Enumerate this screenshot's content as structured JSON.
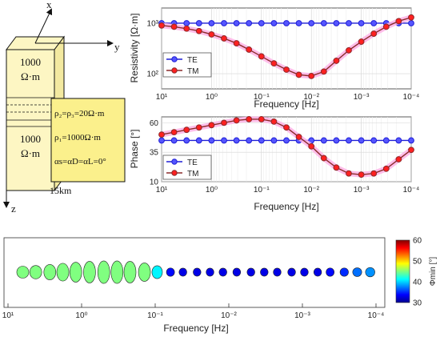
{
  "model": {
    "axis_x": "x",
    "axis_y": "y",
    "axis_z": "z",
    "upper_layer_line1": "1000",
    "upper_layer_line2": "Ω·m",
    "lower_layer_line1": "1000",
    "lower_layer_line2": "Ω·m",
    "depth_label": "15km",
    "legend_line1": "ρ₂=ρ₃=20Ω·m",
    "legend_line2": "ρ₁=1000Ω·m",
    "legend_line3": "αs=αD=αL=0°",
    "colors": {
      "block_fill": "#fdf6c3",
      "block_side": "#f3e9a0",
      "legend_fill": "#fbf08c"
    }
  },
  "chart_data": [
    {
      "type": "line",
      "panel": "resistivity",
      "xlabel": "Frequency [Hz]",
      "ylabel": "Resistivity [Ω·m]",
      "x_scale": "log",
      "x_reversed": true,
      "xlim": [
        10,
        0.0001
      ],
      "y_scale": "log",
      "ylim": [
        50,
        2000
      ],
      "xtick_labels": [
        "10¹",
        "10⁰",
        "10⁻¹",
        "10⁻²",
        "10⁻³",
        "10⁻⁴"
      ],
      "ytick_labels": [
        "10²",
        "10³"
      ],
      "grid": true,
      "legend": "top-left",
      "x": [
        10,
        5.62,
        3.16,
        1.78,
        1,
        0.562,
        0.316,
        0.178,
        0.1,
        0.0562,
        0.0316,
        0.0178,
        0.01,
        0.00562,
        0.00316,
        0.00178,
        0.001,
        0.000562,
        0.000316,
        0.000178,
        0.0001
      ],
      "series": [
        {
          "name": "TE",
          "color": "#1f1fd6",
          "values": [
            1000,
            1000,
            1000,
            1000,
            1000,
            1000,
            1000,
            1000,
            1000,
            1000,
            1000,
            1000,
            1000,
            1000,
            1000,
            1000,
            1000,
            1000,
            1000,
            1000,
            1000
          ]
        },
        {
          "name": "TM",
          "color": "#d01818",
          "values": [
            900,
            850,
            780,
            700,
            600,
            500,
            400,
            300,
            220,
            160,
            120,
            95,
            90,
            110,
            180,
            290,
            430,
            620,
            850,
            1100,
            1300
          ]
        }
      ]
    },
    {
      "type": "line",
      "panel": "phase",
      "xlabel": "Frequency [Hz]",
      "ylabel": "Phase [°]",
      "x_scale": "log",
      "x_reversed": true,
      "xlim": [
        10,
        0.0001
      ],
      "ylim": [
        10,
        65
      ],
      "xtick_labels": [
        "10¹",
        "10⁰",
        "10⁻¹",
        "10⁻²",
        "10⁻³",
        "10⁻⁴"
      ],
      "ytick_labels": [
        "10",
        "35",
        "60"
      ],
      "grid": true,
      "legend": "bottom-left",
      "x": [
        10,
        5.62,
        3.16,
        1.78,
        1,
        0.562,
        0.316,
        0.178,
        0.1,
        0.0562,
        0.0316,
        0.0178,
        0.01,
        0.00562,
        0.00316,
        0.00178,
        0.001,
        0.000562,
        0.000316,
        0.000178,
        0.0001
      ],
      "series": [
        {
          "name": "TE",
          "color": "#1f1fd6",
          "values": [
            45,
            45,
            45,
            45,
            45,
            45,
            45,
            45,
            45,
            45,
            45,
            45,
            45,
            45,
            45,
            45,
            45,
            45,
            45,
            45,
            45
          ]
        },
        {
          "name": "TM",
          "color": "#d01818",
          "values": [
            50,
            52,
            54,
            56,
            58,
            60,
            62,
            63,
            63,
            61,
            56,
            48,
            40,
            30,
            22,
            17,
            16,
            17,
            21,
            29,
            37
          ]
        }
      ]
    },
    {
      "type": "scatter",
      "panel": "phase-tensor-ellipses",
      "xlabel": "Frequency [Hz]",
      "x_scale": "log",
      "x_reversed": true,
      "xlim": [
        10,
        0.0001
      ],
      "xtick_labels": [
        "10¹",
        "10⁰",
        "10⁻¹",
        "10⁻²",
        "10⁻³",
        "10⁻⁴"
      ],
      "colorbar": {
        "label": "Φmin [°]",
        "min": 30,
        "max": 60,
        "ticks": [
          "60",
          "50",
          "40",
          "30"
        ]
      },
      "x": [
        6.3,
        4.2,
        2.7,
        1.8,
        1.2,
        0.78,
        0.5,
        0.33,
        0.22,
        0.14,
        0.094,
        0.062,
        0.042,
        0.027,
        0.018,
        0.012,
        0.0078,
        0.005,
        0.0033,
        0.0022,
        0.0014,
        0.00094,
        0.00062,
        0.00042,
        0.00027,
        0.00018,
        0.00012
      ],
      "phi_min": [
        45,
        45,
        45,
        45,
        45,
        45,
        45,
        45,
        45,
        45,
        41,
        34,
        33,
        33,
        33,
        33,
        33,
        33,
        33,
        33,
        33,
        33,
        33,
        34,
        35,
        37,
        38
      ],
      "phi_max": [
        45,
        48,
        52,
        56,
        59,
        61,
        62,
        62,
        61,
        57,
        47,
        35,
        34,
        34,
        34,
        34,
        34,
        34,
        34,
        34,
        34,
        34,
        34,
        35,
        35,
        36,
        38
      ]
    }
  ]
}
